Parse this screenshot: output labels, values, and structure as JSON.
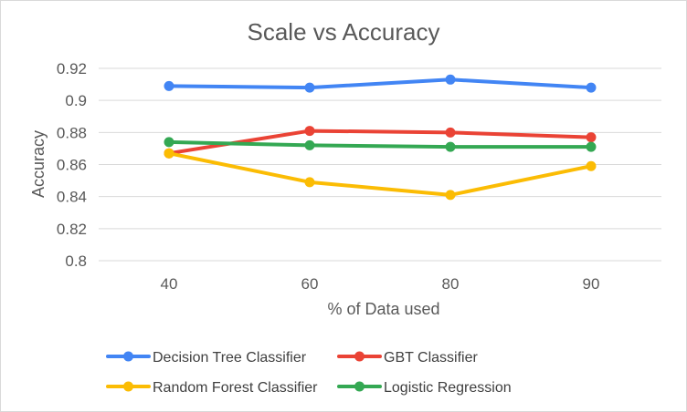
{
  "chart_data": {
    "type": "line",
    "title": "Scale vs Accuracy",
    "xlabel": "% of Data used",
    "ylabel": "Accuracy",
    "categories": [
      "40",
      "60",
      "80",
      "90"
    ],
    "ylim": [
      0.8,
      0.92
    ],
    "yticks": [
      "0.8",
      "0.82",
      "0.84",
      "0.86",
      "0.88",
      "0.9",
      "0.92"
    ],
    "grid": true,
    "legend_position": "bottom",
    "series": [
      {
        "name": "Decision Tree Classifier",
        "color": "#4285f4",
        "values": [
          0.909,
          0.908,
          0.913,
          0.908
        ]
      },
      {
        "name": "GBT Classifier",
        "color": "#ea4335",
        "values": [
          0.867,
          0.881,
          0.88,
          0.877
        ]
      },
      {
        "name": "Random Forest Classifier",
        "color": "#fbbc04",
        "values": [
          0.867,
          0.849,
          0.841,
          0.859
        ]
      },
      {
        "name": "Logistic Regression",
        "color": "#34a853",
        "values": [
          0.874,
          0.872,
          0.871,
          0.871
        ]
      }
    ]
  }
}
